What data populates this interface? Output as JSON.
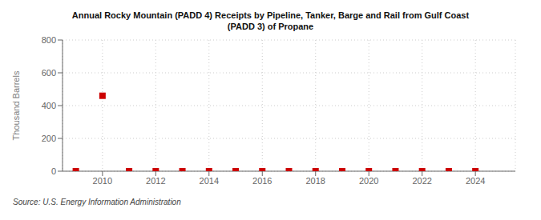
{
  "chart_data": {
    "type": "scatter",
    "title": "Annual Rocky Mountain (PADD 4) Receipts by Pipeline, Tanker, Barge and Rail from Gulf Coast\n(PADD 3) of Propane",
    "y_label": "Thousand Barrels",
    "source": "Source: U.S. Energy Information Administration",
    "x": [
      2009,
      2010,
      2011,
      2012,
      2013,
      2014,
      2015,
      2016,
      2017,
      2018,
      2019,
      2020,
      2021,
      2022,
      2023,
      2024
    ],
    "values": [
      0,
      460,
      0,
      0,
      0,
      0,
      0,
      0,
      0,
      0,
      0,
      0,
      0,
      0,
      0,
      0
    ],
    "color": "#cc0000",
    "marker": "square",
    "xlim": [
      2008.5,
      2025.5
    ],
    "xticks": [
      2010,
      2012,
      2014,
      2016,
      2018,
      2020,
      2022,
      2024
    ],
    "ylim": [
      0,
      800
    ],
    "yticks": [
      0,
      200,
      400,
      600,
      800
    ],
    "grid": true
  }
}
